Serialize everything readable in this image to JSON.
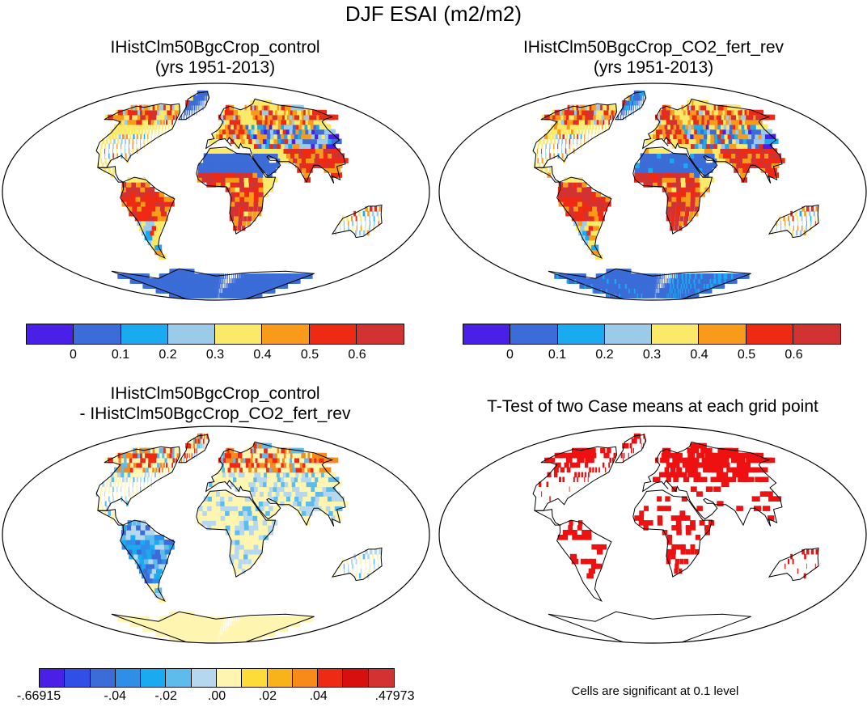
{
  "figure": {
    "title": "DJF ESAI (m2/m2)"
  },
  "panels": [
    {
      "id": "control",
      "title_line1": "IHistClm50BgcCrop_control",
      "title_line2": "(yrs 1951-2013)",
      "fill_scheme": "absolute"
    },
    {
      "id": "co2_fert_rev",
      "title_line1": "IHistClm50BgcCrop_CO2_fert_rev",
      "title_line2": "(yrs 1951-2013)",
      "fill_scheme": "absolute"
    },
    {
      "id": "difference",
      "title_line1": "IHistClm50BgcCrop_control",
      "title_line2": "- IHistClm50BgcCrop_CO2_fert_rev",
      "fill_scheme": "difference"
    },
    {
      "id": "ttest",
      "title_line1": "T-Test of two Case means at each grid point",
      "title_line2": "",
      "fill_scheme": "significance",
      "note": "Cells are significant at 0.1 level"
    }
  ],
  "colorbar_absolute": {
    "colors": [
      "#4a1fe8",
      "#3b6cd8",
      "#1aaaf0",
      "#9ccbea",
      "#fbe96a",
      "#f89a1a",
      "#ee2a14",
      "#d23232"
    ],
    "labels": [
      "0",
      "0.1",
      "0.2",
      "0.3",
      "0.4",
      "0.5",
      "0.6"
    ]
  },
  "colorbar_difference": {
    "colors": [
      "#4a1fe8",
      "#2f4fe6",
      "#3b6cd8",
      "#2f8ee8",
      "#1aaaf0",
      "#5dbcec",
      "#b5d8ee",
      "#fdf5b0",
      "#fddc3a",
      "#f8b21a",
      "#f88a1a",
      "#ee2a14",
      "#d80f0f",
      "#d23232"
    ],
    "labels": [
      "-.66915",
      "-.04",
      "-.02",
      ".00",
      ".02",
      ".04",
      ".47973"
    ]
  },
  "significance_color": "#ee1111"
}
